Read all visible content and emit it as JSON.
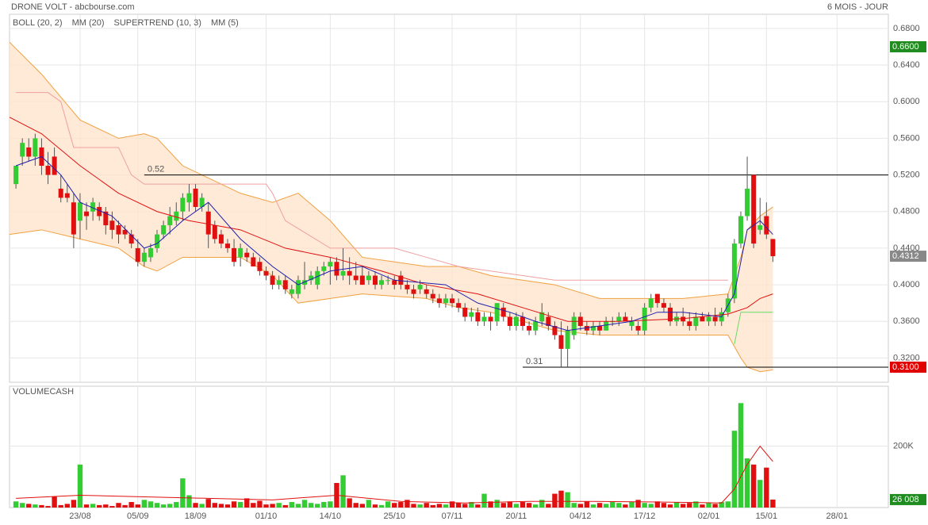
{
  "chart_data": {
    "type": "candlestick",
    "title": "DRONE VOLT - abcbourse.com",
    "period": "6 MOIS - JOUR",
    "up_color": "#33cc33",
    "down_color": "#e01010",
    "xlim": [
      -1,
      136
    ],
    "xticks": [
      {
        "value": 10,
        "label": "23/08"
      },
      {
        "value": 19,
        "label": "05/09"
      },
      {
        "value": 28,
        "label": "18/09"
      },
      {
        "value": 39,
        "label": "01/10"
      },
      {
        "value": 49,
        "label": "14/10"
      },
      {
        "value": 59,
        "label": "25/10"
      },
      {
        "value": 68,
        "label": "07/11"
      },
      {
        "value": 78,
        "label": "20/11"
      },
      {
        "value": 88,
        "label": "04/12"
      },
      {
        "value": 98,
        "label": "17/12"
      },
      {
        "value": 108,
        "label": "02/01"
      },
      {
        "value": 117,
        "label": "15/01"
      },
      {
        "value": 128,
        "label": "28/01"
      }
    ],
    "ylim": [
      0.2935,
      0.6955
    ],
    "yticks": [
      {
        "value": 0.32,
        "label": "0.3200"
      },
      {
        "value": 0.36,
        "label": "0.3600"
      },
      {
        "value": 0.4,
        "label": "0.4000"
      },
      {
        "value": 0.44,
        "label": "0.4400"
      },
      {
        "value": 0.48,
        "label": "0.4800"
      },
      {
        "value": 0.52,
        "label": "0.5200"
      },
      {
        "value": 0.56,
        "label": "0.5600"
      },
      {
        "value": 0.6,
        "label": "0.6000"
      },
      {
        "value": 0.64,
        "label": "0.6400"
      },
      {
        "value": 0.68,
        "label": "0.6800"
      }
    ],
    "grid": true,
    "legend": [
      {
        "name": "BOLL (20, 2)",
        "color": "#f0a040"
      },
      {
        "name": "MM (20)",
        "color": "#e01010"
      },
      {
        "name": "SUPERTREND (10, 3)",
        "color": "#f0a0a0"
      },
      {
        "name": "MM (5)",
        "color": "#2020b0"
      }
    ],
    "candles": [
      [
        0.51,
        0.53,
        0.505,
        0.53
      ],
      [
        0.54,
        0.56,
        0.53,
        0.555
      ],
      [
        0.55,
        0.56,
        0.535,
        0.54
      ],
      [
        0.54,
        0.565,
        0.53,
        0.56
      ],
      [
        0.55,
        0.56,
        0.52,
        0.53
      ],
      [
        0.53,
        0.545,
        0.51,
        0.52
      ],
      [
        0.54,
        0.55,
        0.52,
        0.52
      ],
      [
        0.505,
        0.52,
        0.49,
        0.495
      ],
      [
        0.5,
        0.51,
        0.49,
        0.495
      ],
      [
        0.49,
        0.5,
        0.44,
        0.455
      ],
      [
        0.47,
        0.5,
        0.45,
        0.49
      ],
      [
        0.48,
        0.49,
        0.46,
        0.475
      ],
      [
        0.48,
        0.495,
        0.47,
        0.49
      ],
      [
        0.485,
        0.49,
        0.47,
        0.475
      ],
      [
        0.48,
        0.485,
        0.455,
        0.465
      ],
      [
        0.47,
        0.48,
        0.45,
        0.46
      ],
      [
        0.465,
        0.47,
        0.445,
        0.455
      ],
      [
        0.46,
        0.465,
        0.45,
        0.455
      ],
      [
        0.455,
        0.46,
        0.44,
        0.445
      ],
      [
        0.44,
        0.45,
        0.42,
        0.425
      ],
      [
        0.425,
        0.44,
        0.42,
        0.435
      ],
      [
        0.43,
        0.445,
        0.425,
        0.44
      ],
      [
        0.44,
        0.46,
        0.435,
        0.455
      ],
      [
        0.455,
        0.47,
        0.45,
        0.465
      ],
      [
        0.465,
        0.485,
        0.455,
        0.475
      ],
      [
        0.47,
        0.49,
        0.465,
        0.48
      ],
      [
        0.48,
        0.5,
        0.47,
        0.495
      ],
      [
        0.49,
        0.51,
        0.48,
        0.5
      ],
      [
        0.505,
        0.51,
        0.48,
        0.485
      ],
      [
        0.485,
        0.5,
        0.48,
        0.495
      ],
      [
        0.48,
        0.49,
        0.44,
        0.455
      ],
      [
        0.465,
        0.47,
        0.445,
        0.45
      ],
      [
        0.455,
        0.46,
        0.44,
        0.445
      ],
      [
        0.445,
        0.45,
        0.435,
        0.44
      ],
      [
        0.44,
        0.45,
        0.42,
        0.425
      ],
      [
        0.43,
        0.445,
        0.42,
        0.44
      ],
      [
        0.435,
        0.44,
        0.425,
        0.43
      ],
      [
        0.43,
        0.435,
        0.42,
        0.42
      ],
      [
        0.425,
        0.43,
        0.41,
        0.415
      ],
      [
        0.415,
        0.42,
        0.405,
        0.41
      ],
      [
        0.41,
        0.415,
        0.395,
        0.4
      ],
      [
        0.4,
        0.41,
        0.395,
        0.405
      ],
      [
        0.405,
        0.41,
        0.39,
        0.395
      ],
      [
        0.39,
        0.4,
        0.385,
        0.395
      ],
      [
        0.39,
        0.41,
        0.385,
        0.405
      ],
      [
        0.4,
        0.425,
        0.395,
        0.405
      ],
      [
        0.405,
        0.415,
        0.4,
        0.41
      ],
      [
        0.4,
        0.42,
        0.395,
        0.415
      ],
      [
        0.415,
        0.425,
        0.41,
        0.42
      ],
      [
        0.42,
        0.43,
        0.4,
        0.425
      ],
      [
        0.425,
        0.43,
        0.405,
        0.41
      ],
      [
        0.41,
        0.44,
        0.405,
        0.415
      ],
      [
        0.415,
        0.43,
        0.4,
        0.41
      ],
      [
        0.41,
        0.425,
        0.4,
        0.405
      ],
      [
        0.41,
        0.42,
        0.4,
        0.4
      ],
      [
        0.405,
        0.415,
        0.4,
        0.41
      ],
      [
        0.41,
        0.415,
        0.395,
        0.4
      ],
      [
        0.4,
        0.41,
        0.395,
        0.405
      ],
      [
        0.405,
        0.41,
        0.4,
        0.405
      ],
      [
        0.405,
        0.41,
        0.395,
        0.4
      ],
      [
        0.41,
        0.415,
        0.395,
        0.4
      ],
      [
        0.4,
        0.405,
        0.39,
        0.395
      ],
      [
        0.395,
        0.4,
        0.385,
        0.39
      ],
      [
        0.395,
        0.405,
        0.39,
        0.4
      ],
      [
        0.395,
        0.4,
        0.385,
        0.39
      ],
      [
        0.39,
        0.395,
        0.38,
        0.385
      ],
      [
        0.385,
        0.39,
        0.375,
        0.38
      ],
      [
        0.38,
        0.39,
        0.375,
        0.385
      ],
      [
        0.385,
        0.39,
        0.375,
        0.38
      ],
      [
        0.38,
        0.385,
        0.37,
        0.375
      ],
      [
        0.375,
        0.38,
        0.36,
        0.365
      ],
      [
        0.365,
        0.375,
        0.36,
        0.37
      ],
      [
        0.37,
        0.375,
        0.355,
        0.36
      ],
      [
        0.36,
        0.37,
        0.355,
        0.365
      ],
      [
        0.365,
        0.37,
        0.35,
        0.36
      ],
      [
        0.36,
        0.38,
        0.355,
        0.38
      ],
      [
        0.375,
        0.38,
        0.36,
        0.365
      ],
      [
        0.365,
        0.37,
        0.35,
        0.355
      ],
      [
        0.355,
        0.37,
        0.35,
        0.365
      ],
      [
        0.365,
        0.37,
        0.35,
        0.355
      ],
      [
        0.355,
        0.36,
        0.345,
        0.35
      ],
      [
        0.35,
        0.365,
        0.345,
        0.36
      ],
      [
        0.36,
        0.38,
        0.355,
        0.37
      ],
      [
        0.365,
        0.37,
        0.35,
        0.355
      ],
      [
        0.355,
        0.36,
        0.34,
        0.345
      ],
      [
        0.345,
        0.36,
        0.31,
        0.33
      ],
      [
        0.33,
        0.355,
        0.31,
        0.35
      ],
      [
        0.345,
        0.37,
        0.34,
        0.365
      ],
      [
        0.365,
        0.37,
        0.35,
        0.355
      ],
      [
        0.355,
        0.36,
        0.345,
        0.35
      ],
      [
        0.35,
        0.36,
        0.345,
        0.355
      ],
      [
        0.355,
        0.36,
        0.345,
        0.35
      ],
      [
        0.35,
        0.365,
        0.35,
        0.36
      ],
      [
        0.36,
        0.365,
        0.355,
        0.36
      ],
      [
        0.36,
        0.37,
        0.355,
        0.365
      ],
      [
        0.365,
        0.37,
        0.36,
        0.36
      ],
      [
        0.355,
        0.365,
        0.35,
        0.36
      ],
      [
        0.355,
        0.36,
        0.345,
        0.35
      ],
      [
        0.35,
        0.38,
        0.345,
        0.375
      ],
      [
        0.375,
        0.39,
        0.37,
        0.385
      ],
      [
        0.39,
        0.39,
        0.375,
        0.38
      ],
      [
        0.38,
        0.385,
        0.37,
        0.375
      ],
      [
        0.375,
        0.38,
        0.355,
        0.36
      ],
      [
        0.36,
        0.37,
        0.355,
        0.365
      ],
      [
        0.365,
        0.375,
        0.355,
        0.36
      ],
      [
        0.36,
        0.37,
        0.35,
        0.355
      ],
      [
        0.355,
        0.37,
        0.35,
        0.365
      ],
      [
        0.365,
        0.37,
        0.36,
        0.36
      ],
      [
        0.36,
        0.37,
        0.355,
        0.365
      ],
      [
        0.365,
        0.375,
        0.355,
        0.36
      ],
      [
        0.36,
        0.375,
        0.355,
        0.37
      ],
      [
        0.37,
        0.39,
        0.365,
        0.385
      ],
      [
        0.385,
        0.45,
        0.38,
        0.445
      ],
      [
        0.445,
        0.48,
        0.44,
        0.475
      ],
      [
        0.475,
        0.54,
        0.47,
        0.505
      ],
      [
        0.52,
        0.52,
        0.44,
        0.445
      ],
      [
        0.46,
        0.495,
        0.455,
        0.465
      ],
      [
        0.475,
        0.49,
        0.45,
        0.455
      ],
      [
        0.45,
        0.45,
        0.425,
        0.4312
      ]
    ],
    "boll": {
      "x": [
        -1,
        4,
        10,
        16,
        20,
        22,
        26,
        35,
        40,
        44,
        49,
        54,
        64,
        69,
        74,
        79,
        84,
        91,
        104,
        111,
        113,
        114,
        116,
        118
      ],
      "upper": [
        0.665,
        0.63,
        0.58,
        0.56,
        0.565,
        0.56,
        0.53,
        0.5,
        0.49,
        0.5,
        0.47,
        0.43,
        0.42,
        0.42,
        0.41,
        0.405,
        0.4,
        0.385,
        0.385,
        0.39,
        0.43,
        0.46,
        0.475,
        0.485
      ],
      "lower": [
        0.455,
        0.46,
        0.45,
        0.44,
        0.42,
        0.415,
        0.43,
        0.43,
        0.41,
        0.38,
        0.385,
        0.39,
        0.385,
        0.375,
        0.37,
        0.36,
        0.35,
        0.345,
        0.345,
        0.345,
        0.32,
        0.31,
        0.305,
        0.307
      ]
    },
    "mm20": {
      "x": [
        -1,
        4,
        10,
        16,
        22,
        27,
        35,
        42,
        49,
        57,
        64,
        72,
        79,
        86,
        94,
        104,
        111,
        114,
        116,
        118
      ],
      "values": [
        0.583,
        0.565,
        0.53,
        0.5,
        0.48,
        0.47,
        0.46,
        0.44,
        0.43,
        0.415,
        0.4,
        0.39,
        0.375,
        0.36,
        0.36,
        0.363,
        0.368,
        0.375,
        0.385,
        0.39
      ]
    },
    "mm5": {
      "x": [
        0,
        4,
        7,
        10,
        15,
        20,
        22,
        26,
        30,
        35,
        40,
        44,
        49,
        54,
        59,
        67,
        72,
        77,
        81,
        86,
        91,
        96,
        100,
        104,
        110,
        112,
        114,
        116,
        118
      ],
      "values": [
        0.53,
        0.54,
        0.52,
        0.49,
        0.475,
        0.44,
        0.445,
        0.47,
        0.49,
        0.45,
        0.42,
        0.4,
        0.415,
        0.42,
        0.405,
        0.4,
        0.38,
        0.37,
        0.36,
        0.35,
        0.355,
        0.36,
        0.37,
        0.37,
        0.365,
        0.39,
        0.46,
        0.47,
        0.455
      ]
    },
    "supertrend_down": {
      "color": "#f0a0a0",
      "x": [
        0,
        5,
        7,
        9,
        16,
        18,
        20,
        39,
        40,
        42,
        49,
        59,
        64,
        69,
        74,
        79,
        84,
        111
      ],
      "values": [
        0.61,
        0.61,
        0.6,
        0.55,
        0.55,
        0.52,
        0.51,
        0.51,
        0.5,
        0.47,
        0.44,
        0.44,
        0.43,
        0.42,
        0.415,
        0.41,
        0.405,
        0.405
      ]
    },
    "supertrend_up": {
      "color": "#66dd66",
      "x": [
        112,
        113,
        118
      ],
      "values": [
        0.335,
        0.37,
        0.37
      ]
    },
    "hlines": [
      {
        "value": 0.52,
        "label": "0.52",
        "x_start": 20
      },
      {
        "value": 0.31,
        "label": "0.31",
        "x_start": 79
      }
    ],
    "price_markers": [
      {
        "value": 0.66,
        "label": "0.6600",
        "color": "#1e8c1e"
      },
      {
        "value": 0.4312,
        "label": "0.4312",
        "color": "#888888"
      },
      {
        "value": 0.31,
        "label": "0.3100",
        "color": "#e00000"
      }
    ],
    "volume": {
      "title": "VOLUMECASH",
      "ylim": [
        0,
        395000
      ],
      "yticks": [
        {
          "value": 200000,
          "label": "200K"
        }
      ],
      "values": [
        20000,
        15000,
        12000,
        10000,
        8000,
        5000,
        35000,
        8000,
        12000,
        25000,
        140000,
        10000,
        12000,
        8000,
        10000,
        5000,
        15000,
        8000,
        18000,
        10000,
        25000,
        20000,
        15000,
        10000,
        12000,
        18000,
        95000,
        40000,
        15000,
        12000,
        28000,
        15000,
        12000,
        10000,
        20000,
        18000,
        30000,
        15000,
        22000,
        10000,
        12000,
        15000,
        8000,
        18000,
        12000,
        25000,
        15000,
        12000,
        18000,
        20000,
        80000,
        105000,
        30000,
        15000,
        12000,
        25000,
        10000,
        8000,
        20000,
        15000,
        18000,
        25000,
        12000,
        10000,
        15000,
        8000,
        12000,
        10000,
        20000,
        15000,
        12000,
        18000,
        10000,
        45000,
        20000,
        25000,
        15000,
        20000,
        12000,
        18000,
        15000,
        10000,
        25000,
        12000,
        45000,
        55000,
        50000,
        15000,
        12000,
        20000,
        10000,
        15000,
        12000,
        20000,
        15000,
        10000,
        18000,
        25000,
        15000,
        12000,
        20000,
        15000,
        10000,
        18000,
        12000,
        15000,
        20000,
        10000,
        15000,
        12000,
        18000,
        20000,
        250000,
        340000,
        160000,
        140000,
        90000,
        130000,
        26008
      ],
      "ma": {
        "color": "#e01010",
        "x": [
          0,
          10,
          20,
          30,
          40,
          50,
          60,
          70,
          80,
          90,
          100,
          110,
          112,
          114,
          116,
          118
        ],
        "values": [
          30000,
          40000,
          35000,
          30000,
          25000,
          40000,
          20000,
          15000,
          20000,
          20000,
          18000,
          15000,
          60000,
          140000,
          200000,
          150000
        ]
      },
      "marker": {
        "value": 26008,
        "label": "26 008",
        "color": "#1e8c1e"
      }
    }
  }
}
